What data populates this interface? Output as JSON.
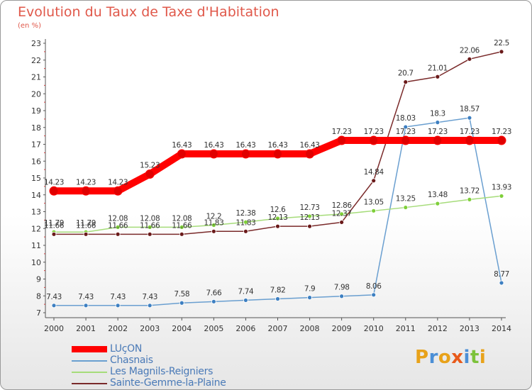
{
  "chart_data": {
    "type": "line",
    "title": "Evolution du Taux de Taxe d'Habitation",
    "subtitle": "(en %)",
    "x": [
      "2000",
      "2001",
      "2002",
      "2003",
      "2004",
      "2005",
      "2006",
      "2007",
      "2008",
      "2009",
      "2010",
      "2011",
      "2012",
      "2013",
      "2014"
    ],
    "ylim": [
      7,
      23
    ],
    "yticks": [
      7,
      8,
      9,
      10,
      11,
      12,
      13,
      14,
      15,
      16,
      17,
      18,
      19,
      20,
      21,
      22,
      23
    ],
    "grid": false,
    "legend_position": "bottom-left",
    "series": [
      {
        "name": "LUçON",
        "color": "#ff0000",
        "marker_color": "#e00000",
        "values": [
          14.23,
          14.23,
          14.23,
          15.23,
          16.43,
          16.43,
          16.43,
          16.43,
          16.43,
          17.23,
          17.23,
          17.23,
          17.23,
          17.23,
          17.23
        ],
        "labels": [
          "14.23",
          "14.23",
          "14.23",
          "15.23",
          "16.43",
          "16.43",
          "16.43",
          "16.43",
          "16.43",
          "17.23",
          "17.23",
          "17.23",
          "17.23",
          "17.23",
          "17.23"
        ]
      },
      {
        "name": "Chasnais",
        "color": "#6a9fd0",
        "marker_color": "#3d7fc1",
        "values": [
          7.43,
          7.43,
          7.43,
          7.43,
          7.58,
          7.66,
          7.74,
          7.82,
          7.9,
          7.98,
          8.06,
          18.03,
          18.3,
          18.57,
          8.77
        ],
        "labels": [
          "7.43",
          "7.43",
          "7.43",
          "7.43",
          "7.58",
          "7.66",
          "7.74",
          "7.82",
          "7.9",
          "7.98",
          "8.06",
          "18.03",
          "18.3",
          "18.57",
          "8.77"
        ]
      },
      {
        "name": "Les Magnils-Reigniers",
        "color": "#a6dc7a",
        "marker_color": "#7fcf3a",
        "values": [
          11.79,
          11.79,
          12.08,
          12.08,
          12.08,
          12.2,
          12.38,
          12.6,
          12.73,
          12.86,
          13.05,
          13.25,
          13.48,
          13.72,
          13.93
        ],
        "labels": [
          "11.79",
          "11.79",
          "12.08",
          "12.08",
          "12.08",
          "12.2",
          "12.38",
          "12.6",
          "12.73",
          "12.86",
          "13.05",
          "13.25",
          "13.48",
          "13.72",
          "13.93"
        ]
      },
      {
        "name": "Sainte-Gemme-la-Plaine",
        "color": "#7a2a2a",
        "marker_color": "#6a1a1a",
        "values": [
          11.66,
          11.66,
          11.66,
          11.66,
          11.66,
          11.83,
          11.83,
          12.13,
          12.13,
          12.37,
          14.84,
          20.7,
          21.01,
          22.06,
          22.5
        ],
        "labels": [
          "11.66",
          "11.66",
          "11.66",
          "11.66",
          "11.66",
          "11.83",
          "11.83",
          "12.13",
          "12.13",
          "12.37",
          "14.84",
          "20.7",
          "21.01",
          "22.06",
          "22.5"
        ]
      }
    ]
  },
  "logo": {
    "letters": [
      "P",
      "r",
      "o",
      "x",
      "i",
      "t",
      "i"
    ],
    "colors": [
      "#e8a21a",
      "#4b8fd6",
      "#e8a21a",
      "#e85a1a",
      "#4b8fd6",
      "#7cc23a",
      "#e8a21a"
    ]
  }
}
